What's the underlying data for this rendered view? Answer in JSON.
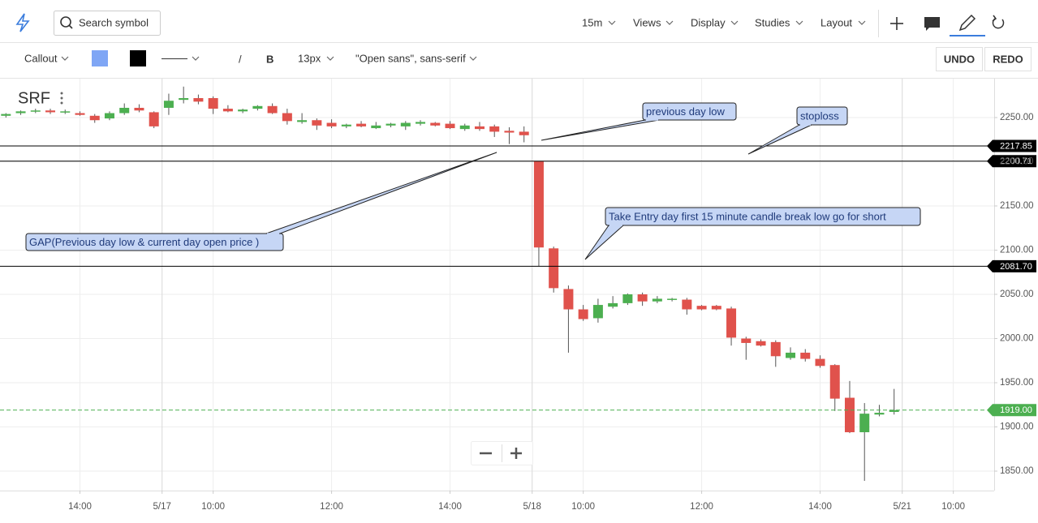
{
  "toolbar": {
    "search_placeholder": "Search symbol",
    "interval": "15m",
    "menus": [
      "Views",
      "Display",
      "Studies",
      "Layout"
    ]
  },
  "drawing_toolbar": {
    "tool": "Callout",
    "line_tool": "/",
    "bold": "B",
    "font_size": "13px",
    "font_family": "\"Open sans\", sans-serif",
    "undo": "UNDO",
    "redo": "REDO"
  },
  "chart_data": {
    "type": "candlestick",
    "symbol": "SRF",
    "up_color": "#4caf50",
    "down_color": "#e0524c",
    "x": [
      -11,
      -10,
      -9,
      -8,
      -7,
      -6,
      -5,
      -4,
      -3,
      -2,
      -1,
      0,
      1,
      2,
      3,
      4,
      5,
      6,
      7,
      8,
      9,
      10,
      11,
      12,
      13,
      14,
      15,
      16,
      17,
      18,
      19,
      20,
      21,
      22,
      23,
      24,
      25,
      26,
      27,
      28,
      29,
      30,
      31,
      32,
      33,
      34,
      35,
      36,
      37,
      38,
      39,
      40,
      41,
      42,
      43,
      44,
      45,
      46,
      47,
      48,
      49
    ],
    "open": [
      2252,
      2255,
      2257,
      2258,
      2256,
      2255,
      2252,
      2249,
      2255,
      2261,
      2256,
      2261,
      2270,
      2272,
      2272,
      2260,
      2257,
      2260,
      2263,
      2255,
      2245,
      2247,
      2244,
      2240,
      2243,
      2238,
      2241,
      2240,
      2243,
      2244,
      2243,
      2237,
      2240,
      2240,
      2235,
      2234,
      2200.71,
      2102,
      2056,
      2033,
      2023,
      2036,
      2040,
      2050,
      2042,
      2044,
      2044,
      2037,
      2037,
      2034,
      2000,
      1997,
      1996,
      1978,
      1984,
      1977,
      1970,
      1933,
      1894,
      1914,
      1917
    ],
    "high": [
      2255,
      2258,
      2260,
      2260,
      2259,
      2257,
      2254,
      2257,
      2266,
      2265,
      2257,
      2277,
      2285,
      2276,
      2274,
      2264,
      2260,
      2264,
      2266,
      2260,
      2255,
      2249,
      2248,
      2243,
      2246,
      2245,
      2244,
      2246,
      2247,
      2245,
      2246,
      2243,
      2245,
      2242,
      2239,
      2240,
      2200.71,
      2104,
      2060,
      2038,
      2045,
      2048,
      2051,
      2052,
      2048,
      2046,
      2046,
      2038,
      2038,
      2036,
      2002,
      1999,
      1998,
      1990,
      1988,
      1981,
      1971,
      1952,
      1927,
      1925,
      1943
    ],
    "low": [
      2250,
      2253,
      2255,
      2254,
      2254,
      2252,
      2244,
      2247,
      2253,
      2256,
      2238,
      2253,
      2266,
      2265,
      2254,
      2256,
      2255,
      2258,
      2254,
      2242,
      2243,
      2236,
      2238,
      2238,
      2239,
      2237,
      2239,
      2236,
      2241,
      2240,
      2237,
      2235,
      2235,
      2228,
      2220,
      2222,
      2082,
      2052,
      1984,
      2020,
      2018,
      2034,
      2038,
      2037,
      2040,
      2042,
      2027,
      2032,
      2032,
      1992,
      1976,
      1991,
      1968,
      1976,
      1974,
      1967,
      1918,
      1893,
      1839,
      1912,
      1914
    ],
    "close": [
      2254,
      2257,
      2258,
      2256,
      2257,
      2253,
      2247,
      2255,
      2261,
      2258,
      2240,
      2269,
      2272,
      2268,
      2260,
      2257,
      2259,
      2263,
      2255,
      2246,
      2247,
      2241,
      2240,
      2242,
      2240,
      2241,
      2243,
      2244,
      2245,
      2241,
      2238,
      2241,
      2237,
      2234,
      2233,
      2230,
      2103,
      2057,
      2033,
      2022,
      2038,
      2040,
      2050,
      2042,
      2045,
      2045,
      2033,
      2033,
      2033,
      2001,
      1995,
      1992,
      1980,
      1984,
      1977,
      1969,
      1932,
      1894,
      1915,
      1916,
      1919
    ],
    "xlim": [
      -11.4,
      55.76
    ],
    "xticks": [
      {
        "value": -6,
        "label": "14:00"
      },
      {
        "value": -0.45,
        "label": "5/17"
      },
      {
        "value": 3,
        "label": "10:00"
      },
      {
        "value": 11,
        "label": "12:00"
      },
      {
        "value": 19,
        "label": "14:00"
      },
      {
        "value": 24.55,
        "label": "5/18"
      },
      {
        "value": 28,
        "label": "10:00"
      },
      {
        "value": 36,
        "label": "12:00"
      },
      {
        "value": 44,
        "label": "14:00"
      },
      {
        "value": 49.55,
        "label": "5/21"
      },
      {
        "value": 53,
        "label": "10:00"
      }
    ],
    "ylim": [
      1828,
      2294
    ],
    "yticks": [
      {
        "value": 1850,
        "label": "1850.00"
      },
      {
        "value": 1900,
        "label": "1900.00"
      },
      {
        "value": 1950,
        "label": "1950.00"
      },
      {
        "value": 2000,
        "label": "2000.00"
      },
      {
        "value": 2050,
        "label": "2050.00"
      },
      {
        "value": 2100,
        "label": "2100.00"
      },
      {
        "value": 2150,
        "label": "2150.00"
      },
      {
        "value": 2200,
        "label": "2200.00"
      },
      {
        "value": 2250,
        "label": "2250.00"
      }
    ],
    "grid": true,
    "price_lines": [
      2217.85,
      2200.71,
      {
        "value": 2081.7,
        "label": "2081.70"
      }
    ],
    "price_line_color": "#000000",
    "last_price": {
      "value": 1919,
      "label": "1919.00"
    },
    "last_price_color": "#4caf50",
    "annotations": [
      "previous day low",
      "stoploss",
      "Take Entry day first 15 minute candle break low go for short",
      "GAP(Previous day low & current day open price )"
    ]
  }
}
